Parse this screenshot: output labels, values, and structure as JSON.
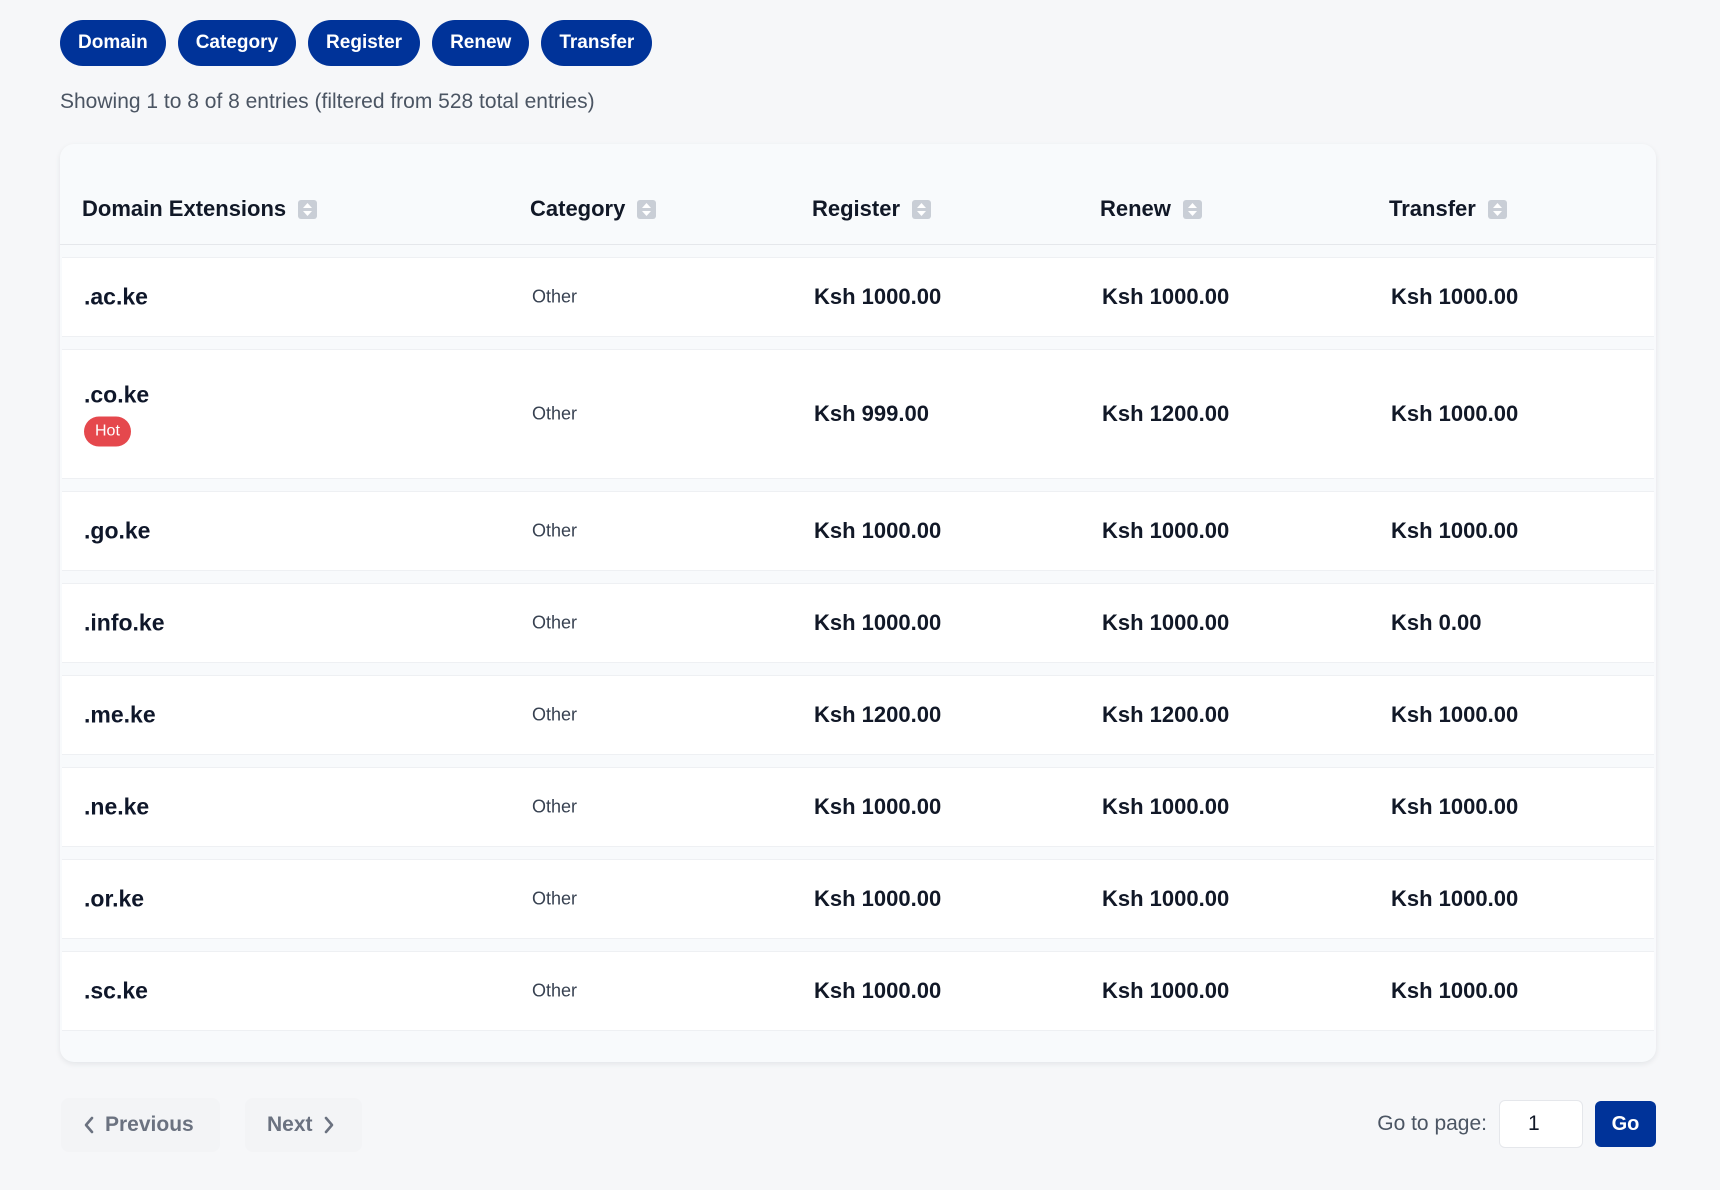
{
  "filters": [
    {
      "label": "Domain"
    },
    {
      "label": "Category"
    },
    {
      "label": "Register"
    },
    {
      "label": "Renew"
    },
    {
      "label": "Transfer"
    }
  ],
  "entries_info": "Showing 1 to 8 of 8 entries (filtered from 528 total entries)",
  "table": {
    "headers": {
      "domain": "Domain Extensions",
      "category": "Category",
      "register": "Register",
      "renew": "Renew",
      "transfer": "Transfer"
    },
    "sort_icon": "sort-icon",
    "rows": [
      {
        "domain": ".ac.ke",
        "category": "Other",
        "register": "Ksh 1000.00",
        "renew": "Ksh 1000.00",
        "transfer": "Ksh 1000.00"
      },
      {
        "domain": ".co.ke",
        "badge": "Hot",
        "category": "Other",
        "register": "Ksh 999.00",
        "renew": "Ksh 1200.00",
        "transfer": "Ksh 1000.00"
      },
      {
        "domain": ".go.ke",
        "category": "Other",
        "register": "Ksh 1000.00",
        "renew": "Ksh 1000.00",
        "transfer": "Ksh 1000.00"
      },
      {
        "domain": ".info.ke",
        "category": "Other",
        "register": "Ksh 1000.00",
        "renew": "Ksh 1000.00",
        "transfer": "Ksh 0.00"
      },
      {
        "domain": ".me.ke",
        "category": "Other",
        "register": "Ksh 1200.00",
        "renew": "Ksh 1200.00",
        "transfer": "Ksh 1000.00"
      },
      {
        "domain": ".ne.ke",
        "category": "Other",
        "register": "Ksh 1000.00",
        "renew": "Ksh 1000.00",
        "transfer": "Ksh 1000.00"
      },
      {
        "domain": ".or.ke",
        "category": "Other",
        "register": "Ksh 1000.00",
        "renew": "Ksh 1000.00",
        "transfer": "Ksh 1000.00"
      },
      {
        "domain": ".sc.ke",
        "category": "Other",
        "register": "Ksh 1000.00",
        "renew": "Ksh 1000.00",
        "transfer": "Ksh 1000.00"
      }
    ]
  },
  "pagination": {
    "previous_label": "Previous",
    "next_label": "Next",
    "goto_label": "Go to page:",
    "page_value": "1",
    "go_label": "Go"
  },
  "colors": {
    "accent": "#003399",
    "hot_badge": "#e5484d",
    "background": "#f6f7f9"
  }
}
